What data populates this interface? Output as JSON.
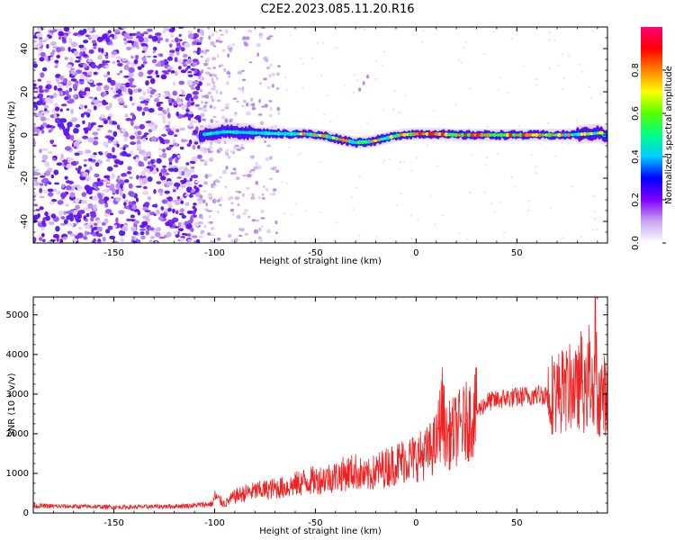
{
  "title": "C2E2.2023.085.11.20.R16",
  "chart_data": [
    {
      "type": "heatmap",
      "xlabel": "Height of straight line (km)",
      "ylabel": "Frequency (Hz)",
      "xlim": [
        -190,
        95
      ],
      "ylim": [
        -50,
        50
      ],
      "xticks": [
        -150,
        -100,
        -50,
        0,
        50
      ],
      "yticks": [
        -40,
        -20,
        0,
        20,
        40
      ],
      "grid": false,
      "description_regions": {
        "noise_region_x": [
          -190,
          -107
        ],
        "faint_noise_region_x": [
          -107,
          -68
        ],
        "signal_region_x": [
          -107,
          95
        ]
      },
      "signal_centerline": {
        "x": [
          -107,
          -95,
          -80,
          -65,
          -55,
          -45,
          -38,
          -30,
          -22,
          -15,
          -8,
          0,
          10,
          20,
          40,
          60,
          75,
          85,
          92
        ],
        "y": [
          0,
          1.5,
          1,
          0.5,
          0.5,
          -0.5,
          -2,
          -3.5,
          -3,
          -1.5,
          0,
          0.5,
          0.5,
          0,
          0,
          0,
          0,
          0.5,
          1
        ]
      },
      "colorbar": {
        "label": "Normalized spectral amplitude",
        "range": [
          0,
          1
        ],
        "ticks": [
          "0.0",
          "0.2",
          "0.4",
          "0.6",
          "0.8"
        ],
        "tick_values": [
          0,
          0.2,
          0.4,
          0.6,
          0.8
        ],
        "colors": [
          "#ffffff",
          "#c9a6f0",
          "#8000ff",
          "#0000ff",
          "#00ccff",
          "#00ff88",
          "#55ff00",
          "#ffff00",
          "#ff8000",
          "#ff0000",
          "#ff0077"
        ]
      }
    },
    {
      "type": "line",
      "xlabel": "Height of straight line (km)",
      "ylabel": "SNR (10 * v/v)",
      "xlim": [
        -190,
        95
      ],
      "ylim": [
        0,
        5450
      ],
      "xticks": [
        -150,
        -100,
        -50,
        0,
        50
      ],
      "yticks": [
        0,
        1000,
        2000,
        3000,
        4000,
        5000
      ],
      "grid": false,
      "color": "#ee2222",
      "series": [
        {
          "x": [
            -190,
            -180,
            -170,
            -160,
            -150,
            -140,
            -130,
            -120,
            -110,
            -101,
            -100,
            -95,
            -90,
            -85,
            -80,
            -75,
            -70,
            -65,
            -60,
            -55,
            -50,
            -45,
            -40,
            -35,
            -30,
            -25,
            -20,
            -15,
            -10,
            -5,
            0,
            5,
            10,
            13,
            15,
            20,
            25,
            30,
            35,
            40,
            45,
            50,
            55,
            60,
            65,
            70,
            75,
            78,
            80,
            82,
            84,
            86,
            88,
            89,
            90,
            92,
            95
          ],
          "y": [
            180,
            170,
            165,
            160,
            150,
            150,
            160,
            170,
            190,
            230,
            420,
            230,
            420,
            500,
            550,
            580,
            620,
            650,
            720,
            800,
            820,
            880,
            920,
            1000,
            1050,
            900,
            1050,
            1150,
            1250,
            1350,
            1400,
            1500,
            1750,
            2600,
            1900,
            2100,
            2300,
            2550,
            2800,
            2850,
            2900,
            2920,
            2950,
            2980,
            3000,
            3050,
            3100,
            3250,
            3000,
            3500,
            2800,
            3800,
            2600,
            5400,
            2900,
            3000,
            2950
          ]
        }
      ]
    }
  ]
}
